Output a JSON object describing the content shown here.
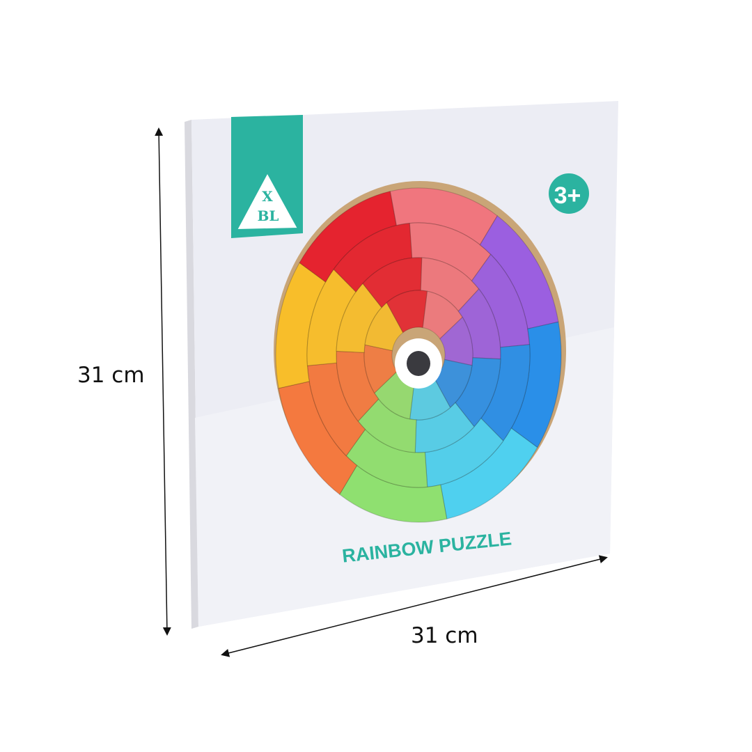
{
  "product": {
    "brand_logo_text": "XBL",
    "age_badge": "3+",
    "title": "RAINBOW PUZZLE",
    "brand_color": "#2bb3a0"
  },
  "dimensions": {
    "height_label": "31 cm",
    "width_label": "31 cm"
  },
  "wheel_colors": [
    "#f0767e",
    "#9b5fe0",
    "#2a8fe8",
    "#4fd0ef",
    "#8fe070",
    "#f4793f",
    "#f8be2a",
    "#e5232f"
  ]
}
